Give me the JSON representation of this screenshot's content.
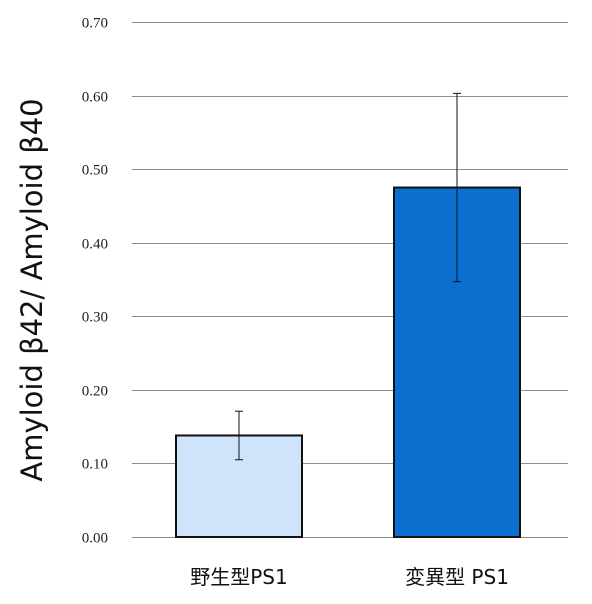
{
  "chart_data": {
    "type": "bar",
    "title": "",
    "xlabel": "",
    "ylabel": "Amyloid β42/ Amyloid β40",
    "categories": [
      "野生型PS1",
      "変異型 PS1"
    ],
    "values": [
      0.138,
      0.475
    ],
    "error": [
      0.033,
      0.128
    ],
    "colors": [
      "#cfe3fa",
      "#0a6fcf"
    ],
    "ylim": [
      0,
      0.7
    ],
    "yticks": [
      0.0,
      0.1,
      0.2,
      0.3,
      0.4,
      0.5,
      0.6,
      0.7
    ],
    "ytick_labels": [
      "0.00",
      "0.10",
      "0.20",
      "0.30",
      "0.40",
      "0.50",
      "0.60",
      "0.70"
    ],
    "grid": true,
    "legend": "none"
  }
}
